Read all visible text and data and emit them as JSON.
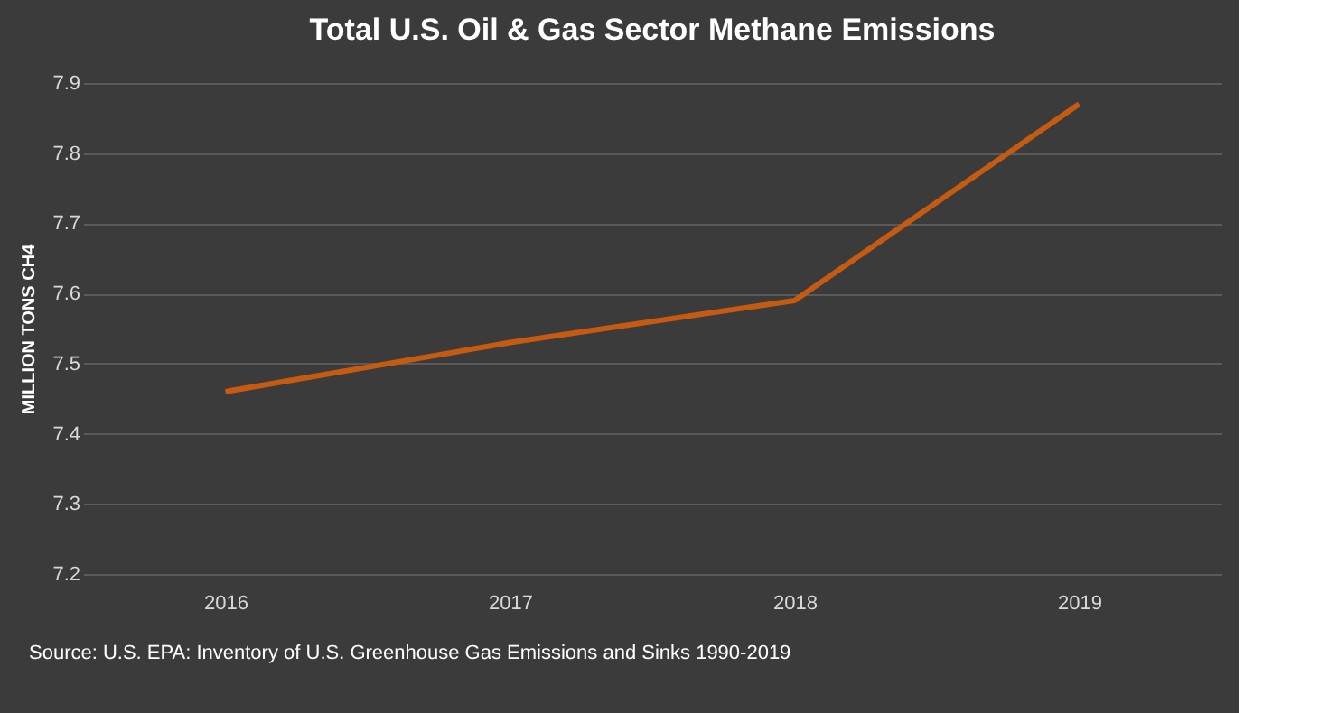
{
  "chart_data": {
    "type": "line",
    "title": "Total U.S. Oil & Gas Sector Methane Emissions",
    "ylabel": "MILLION TONS CH4",
    "categories": [
      "2016",
      "2017",
      "2018",
      "2019"
    ],
    "series": [
      {
        "color": "#c55a11",
        "values": [
          7.46,
          7.53,
          7.59,
          7.87
        ]
      }
    ],
    "ylim": [
      7.2,
      7.9
    ],
    "yticks": [
      7.2,
      7.3,
      7.4,
      7.5,
      7.6,
      7.7,
      7.8,
      7.9
    ],
    "grid": "y",
    "marker": "none",
    "line_style": "solid",
    "annotations": [
      "Source: U.S. EPA:  Inventory of U.S. Greenhouse Gas Emissions and Sinks 1990-2019"
    ]
  }
}
